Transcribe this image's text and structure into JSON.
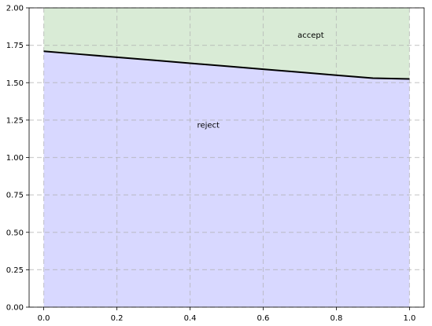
{
  "chart_data": {
    "type": "area",
    "title": "",
    "xlabel": "",
    "ylabel": "",
    "xlim": [
      -0.04,
      1.04
    ],
    "ylim": [
      0.0,
      2.0
    ],
    "x_ticks": [
      0.0,
      0.2,
      0.4,
      0.6,
      0.8,
      1.0
    ],
    "x_tick_labels": [
      "0.0",
      "0.2",
      "0.4",
      "0.6",
      "0.8",
      "1.0"
    ],
    "y_ticks": [
      0.0,
      0.25,
      0.5,
      0.75,
      1.0,
      1.25,
      1.5,
      1.75,
      2.0
    ],
    "y_tick_labels": [
      "0.00",
      "0.25",
      "0.50",
      "0.75",
      "1.00",
      "1.25",
      "1.50",
      "1.75",
      "2.00"
    ],
    "grid": true,
    "boundary": {
      "x": [
        0.0,
        0.1,
        0.2,
        0.3,
        0.4,
        0.5,
        0.6,
        0.7,
        0.8,
        0.9,
        1.0
      ],
      "y": [
        1.71,
        1.69,
        1.67,
        1.65,
        1.63,
        1.61,
        1.59,
        1.57,
        1.55,
        1.53,
        1.525
      ],
      "color": "#000000"
    },
    "regions": [
      {
        "name": "accept",
        "color": "#d9ebd6",
        "position": "above",
        "label_x": 0.73,
        "label_y": 1.8
      },
      {
        "name": "reject",
        "color": "#d8d8ff",
        "position": "below",
        "label_x": 0.45,
        "label_y": 1.2
      }
    ]
  }
}
